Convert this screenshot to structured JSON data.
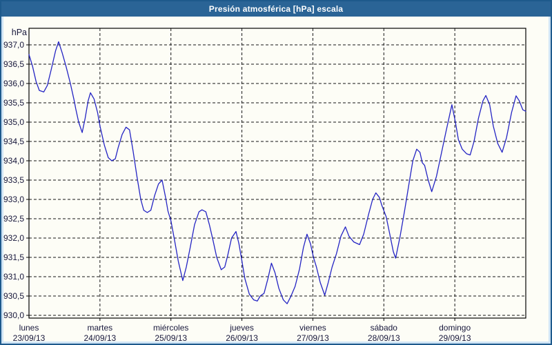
{
  "window": {
    "title": "Presión atmosférica [hPa] escala"
  },
  "colors": {
    "title_bar": "#2a6496",
    "title_text": "#ffffff",
    "window_border": "#1e5a8c",
    "outer_margin": "#cfe4f5",
    "panel_bg": "#fdfdf6",
    "grid": "#141414",
    "axis": "#000000",
    "text": "#16163a",
    "line": "#2323c3"
  },
  "chart_data": {
    "type": "line",
    "title": "Presión atmosférica [hPa] escala",
    "ylabel": "hPa",
    "xlabel": "",
    "ylim": [
      930.0,
      937.4
    ],
    "y_tick_step": 0.5,
    "grid": "dashed",
    "legend": "none",
    "y_tick_values": [
      937.0,
      936.5,
      936.0,
      935.5,
      935.0,
      934.5,
      934.0,
      933.5,
      933.0,
      932.5,
      932.0,
      931.5,
      931.0,
      930.5,
      930.0
    ],
    "y_tick_labels": [
      "937,0",
      "936,5",
      "936,0",
      "935,5",
      "935,0",
      "934,5",
      "934,0",
      "933,5",
      "933,0",
      "932,5",
      "932,0",
      "931,5",
      "931,0",
      "930,5",
      "930,0"
    ],
    "x_days": [
      {
        "label": "lunes",
        "date": "23/09/13"
      },
      {
        "label": "martes",
        "date": "24/09/13"
      },
      {
        "label": "miércoles",
        "date": "25/09/13"
      },
      {
        "label": "jueves",
        "date": "26/09/13"
      },
      {
        "label": "viernes",
        "date": "27/09/13"
      },
      {
        "label": "sábado",
        "date": "28/09/13"
      },
      {
        "label": "domingo",
        "date": "29/09/13"
      }
    ],
    "x_range_hours": [
      0,
      168
    ],
    "series": [
      {
        "name": "Presión atmosférica",
        "unit": "hPa",
        "color": "#2323c3",
        "points_hours_hpa": [
          [
            0,
            936.75
          ],
          [
            1.2,
            936.45
          ],
          [
            2.4,
            936.05
          ],
          [
            3.5,
            935.82
          ],
          [
            5,
            935.78
          ],
          [
            6.2,
            935.95
          ],
          [
            7.5,
            936.35
          ],
          [
            9,
            936.85
          ],
          [
            10,
            937.08
          ],
          [
            11.2,
            936.8
          ],
          [
            12.5,
            936.45
          ],
          [
            14,
            936.0
          ],
          [
            15.3,
            935.55
          ],
          [
            15.8,
            935.35
          ],
          [
            16.8,
            935.0
          ],
          [
            18,
            934.73
          ],
          [
            19,
            935.1
          ],
          [
            20,
            935.55
          ],
          [
            20.8,
            935.76
          ],
          [
            22,
            935.6
          ],
          [
            23.2,
            935.25
          ],
          [
            24,
            934.9
          ],
          [
            25.5,
            934.4
          ],
          [
            26.8,
            934.08
          ],
          [
            28,
            934.0
          ],
          [
            29.2,
            934.05
          ],
          [
            30.2,
            934.35
          ],
          [
            31.5,
            934.68
          ],
          [
            32.8,
            934.87
          ],
          [
            34,
            934.8
          ],
          [
            35.2,
            934.25
          ],
          [
            36.5,
            933.6
          ],
          [
            37.8,
            933.0
          ],
          [
            38.8,
            932.72
          ],
          [
            40,
            932.66
          ],
          [
            41.2,
            932.72
          ],
          [
            42.5,
            933.1
          ],
          [
            43.8,
            933.4
          ],
          [
            45,
            933.5
          ],
          [
            46.2,
            933.05
          ],
          [
            47,
            932.7
          ],
          [
            48,
            932.45
          ],
          [
            49.2,
            931.95
          ],
          [
            50.5,
            931.4
          ],
          [
            52,
            930.9
          ],
          [
            53.2,
            931.25
          ],
          [
            54.5,
            931.75
          ],
          [
            56,
            932.35
          ],
          [
            57.5,
            932.68
          ],
          [
            58.5,
            932.73
          ],
          [
            59.8,
            932.68
          ],
          [
            61,
            932.35
          ],
          [
            62.2,
            931.95
          ],
          [
            63.5,
            931.5
          ],
          [
            65,
            931.18
          ],
          [
            66.2,
            931.25
          ],
          [
            67.2,
            931.55
          ],
          [
            68.5,
            932.0
          ],
          [
            70,
            932.17
          ],
          [
            71,
            931.85
          ],
          [
            71.8,
            931.5
          ],
          [
            73,
            930.95
          ],
          [
            74.5,
            930.55
          ],
          [
            76,
            930.4
          ],
          [
            77.2,
            930.37
          ],
          [
            78.2,
            930.5
          ],
          [
            79.5,
            930.57
          ],
          [
            80.8,
            930.95
          ],
          [
            82,
            931.35
          ],
          [
            83.2,
            931.1
          ],
          [
            84.5,
            930.7
          ],
          [
            86,
            930.4
          ],
          [
            87.3,
            930.3
          ],
          [
            88.5,
            930.48
          ],
          [
            90,
            930.75
          ],
          [
            91.5,
            931.2
          ],
          [
            92.8,
            931.75
          ],
          [
            94,
            932.1
          ],
          [
            95.2,
            931.85
          ],
          [
            96.2,
            931.5
          ],
          [
            97.2,
            931.25
          ],
          [
            98.5,
            930.85
          ],
          [
            100,
            930.52
          ],
          [
            101.2,
            930.85
          ],
          [
            102.5,
            931.25
          ],
          [
            104,
            931.6
          ],
          [
            105.5,
            932.05
          ],
          [
            107,
            932.29
          ],
          [
            108.2,
            932.05
          ],
          [
            109.8,
            931.9
          ],
          [
            111.8,
            931.83
          ],
          [
            113.2,
            932.1
          ],
          [
            114.8,
            932.6
          ],
          [
            116.2,
            933.0
          ],
          [
            117.3,
            933.17
          ],
          [
            118.5,
            933.05
          ],
          [
            119.3,
            932.85
          ],
          [
            120.8,
            932.55
          ],
          [
            122,
            932.1
          ],
          [
            123.2,
            931.65
          ],
          [
            124,
            931.48
          ],
          [
            125.5,
            932.05
          ],
          [
            127,
            932.7
          ],
          [
            128.5,
            933.4
          ],
          [
            129.8,
            934.0
          ],
          [
            131.1,
            934.3
          ],
          [
            132.2,
            934.22
          ],
          [
            133,
            933.95
          ],
          [
            133.8,
            933.88
          ],
          [
            135,
            933.5
          ],
          [
            136.2,
            933.2
          ],
          [
            137.8,
            933.6
          ],
          [
            139.2,
            934.1
          ],
          [
            141,
            934.75
          ],
          [
            143,
            935.45
          ],
          [
            144.2,
            935.0
          ],
          [
            145.2,
            934.55
          ],
          [
            146.5,
            934.3
          ],
          [
            148,
            934.18
          ],
          [
            149.2,
            934.15
          ],
          [
            150.5,
            934.5
          ],
          [
            152,
            935.1
          ],
          [
            153.5,
            935.55
          ],
          [
            154.5,
            935.69
          ],
          [
            155.8,
            935.45
          ],
          [
            157,
            934.9
          ],
          [
            158.5,
            934.45
          ],
          [
            160,
            934.22
          ],
          [
            161.5,
            934.6
          ],
          [
            163.2,
            935.25
          ],
          [
            164.7,
            935.68
          ],
          [
            165.8,
            935.55
          ],
          [
            167,
            935.32
          ],
          [
            168,
            935.28
          ]
        ]
      }
    ]
  }
}
